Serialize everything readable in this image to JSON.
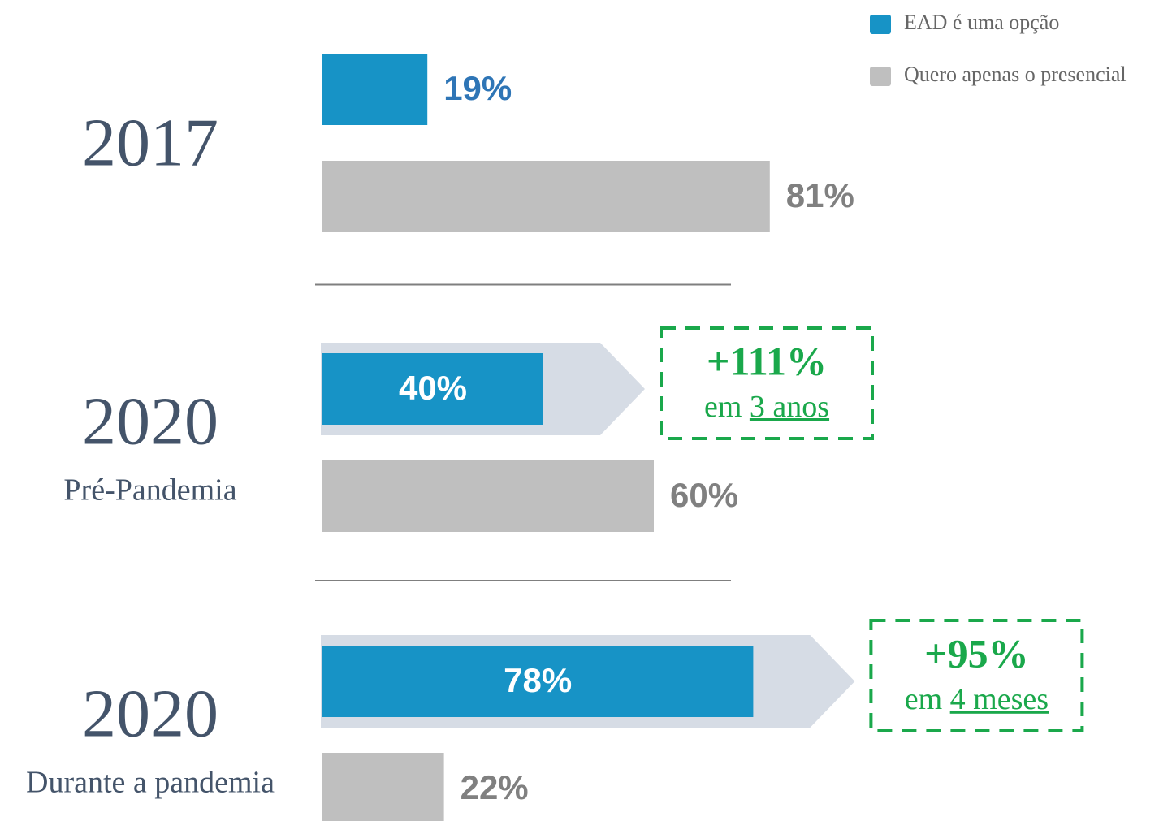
{
  "chart_data": {
    "type": "bar",
    "orientation": "horizontal",
    "categories": [
      "2017",
      "2020",
      "2020"
    ],
    "category_notes": [
      null,
      "Pré-Pandemia",
      "Durante a pandemia"
    ],
    "series": [
      {
        "name": "EAD é uma opção",
        "color": "#1793c6",
        "values": [
          19,
          40,
          78
        ],
        "value_labels": [
          "19%",
          "40%",
          "78%"
        ]
      },
      {
        "name": "Quero apenas o presencial",
        "color": "#bfbfbf",
        "values": [
          81,
          60,
          22
        ],
        "value_labels": [
          "81%",
          "60%",
          "22%"
        ]
      }
    ],
    "annotations": [
      null,
      {
        "label": "+111%",
        "prefix": "em",
        "period": "3 anos"
      },
      {
        "label": "+95%",
        "prefix": "em",
        "period": "4 meses"
      }
    ],
    "legend": "top-right"
  }
}
